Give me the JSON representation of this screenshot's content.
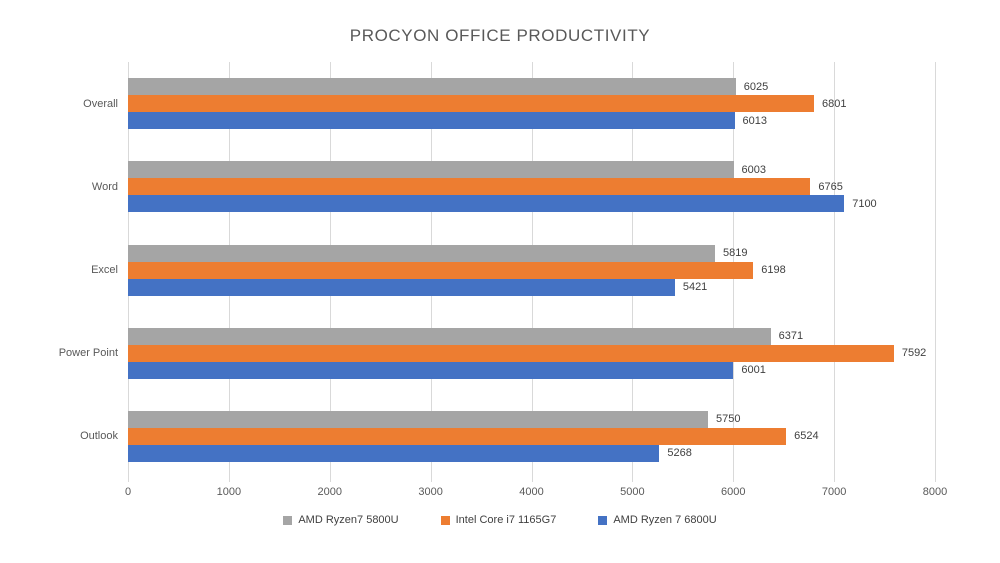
{
  "title": "PROCYON OFFICE PRODUCTIVITY",
  "colors": {
    "gridline": "#d9d9d9",
    "title_text": "#595959",
    "axis_text": "#595959",
    "data_label_text": "#404040",
    "series_gray": "#a5a5a5",
    "series_orange": "#ed7d31",
    "series_blue": "#4472c4",
    "background": "#ffffff"
  },
  "chart_data": {
    "type": "bar",
    "orientation": "horizontal",
    "title": "PROCYON OFFICE PRODUCTIVITY",
    "categories": [
      "Overall",
      "Word",
      "Excel",
      "Power Point",
      "Outlook"
    ],
    "series": [
      {
        "name": "AMD Ryzen7 5800U",
        "color": "#a5a5a5",
        "values": [
          6025,
          6003,
          5819,
          6371,
          5750
        ]
      },
      {
        "name": "Intel Core i7 1165G7",
        "color": "#ed7d31",
        "values": [
          6801,
          6765,
          6198,
          7592,
          6524
        ]
      },
      {
        "name": "AMD Ryzen 7 6800U",
        "color": "#4472c4",
        "values": [
          6013,
          7100,
          5421,
          6001,
          5268
        ]
      }
    ],
    "xlabel": "",
    "ylabel": "",
    "xlim": [
      0,
      8000
    ],
    "xticks": [
      0,
      1000,
      2000,
      3000,
      4000,
      5000,
      6000,
      7000,
      8000
    ],
    "grid": true,
    "data_labels": true,
    "legend_position": "bottom"
  }
}
